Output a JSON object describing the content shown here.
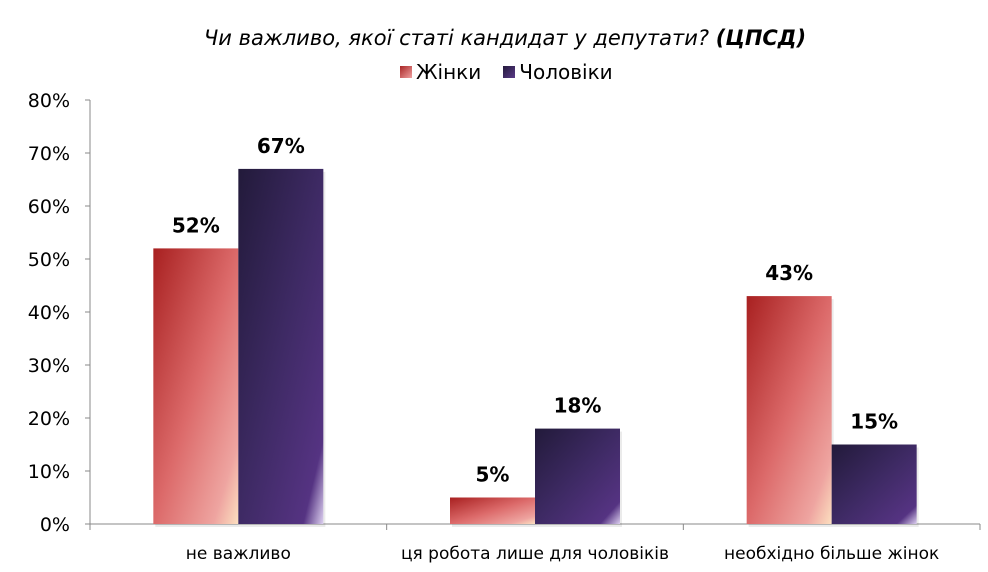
{
  "chart_data": {
    "type": "bar",
    "title": "Чи важливо, якої статі кандидат у депутати?",
    "title_source": "(ЦПСД)",
    "categories": [
      "не важливо",
      "ця робота лише для чоловіків",
      "необхідно більше жінок"
    ],
    "series": [
      {
        "name": "Жінки",
        "values": [
          52,
          5,
          43
        ],
        "labels": [
          "52%",
          "5%",
          "43%"
        ],
        "color": "#c0393a"
      },
      {
        "name": "Чоловіки",
        "values": [
          67,
          18,
          15
        ],
        "labels": [
          "67%",
          "18%",
          "15%"
        ],
        "color": "#3a2458"
      }
    ],
    "ylim": [
      0,
      80
    ],
    "yticks": [
      "0%",
      "10%",
      "20%",
      "30%",
      "40%",
      "50%",
      "60%",
      "70%",
      "80%"
    ],
    "xlabel": "",
    "ylabel": "",
    "grid": false,
    "legend": "top"
  }
}
